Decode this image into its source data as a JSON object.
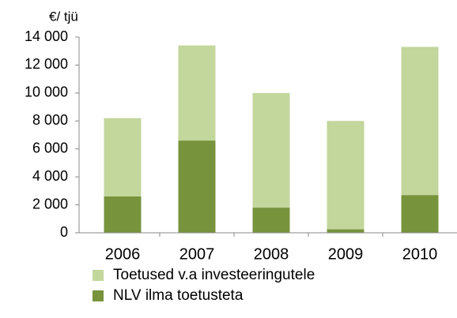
{
  "chart_data": {
    "type": "stacked_bar",
    "y_label": "€/ tjü",
    "categories": [
      "2006",
      "2007",
      "2008",
      "2009",
      "2010"
    ],
    "series": [
      {
        "name": "Toetused v.a investeeringutele",
        "color": "#c3d69b",
        "values": [
          5600,
          6800,
          8200,
          7750,
          10600
        ]
      },
      {
        "name": "NLV ilma toetusteta",
        "color": "#77933c",
        "values": [
          2600,
          6600,
          1800,
          250,
          2700
        ]
      }
    ],
    "ylim": [
      0,
      14000
    ],
    "yticks": [
      0,
      {
        "value": 2000,
        "label": "2 000"
      },
      {
        "value": 4000,
        "label": "4 000"
      },
      {
        "value": 6000,
        "label": "6 000"
      },
      {
        "value": 8000,
        "label": "8 000"
      },
      {
        "value": 10000,
        "label": "10 000"
      },
      {
        "value": 12000,
        "label": "12 000"
      },
      {
        "value": 14000,
        "label": "14 000"
      }
    ],
    "grid": false,
    "legend": "bottom"
  }
}
